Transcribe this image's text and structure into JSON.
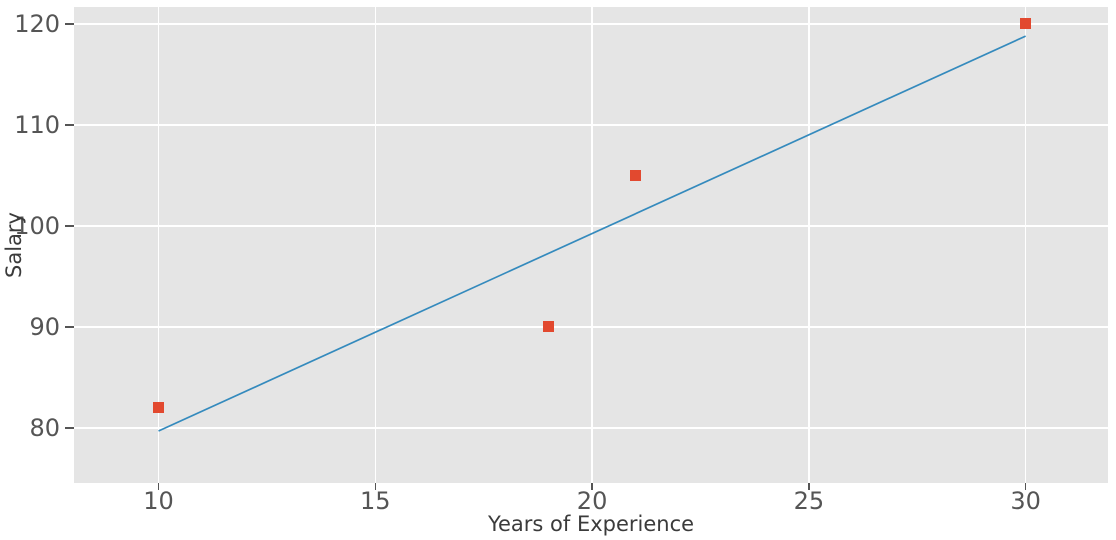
{
  "chart_data": {
    "type": "scatter",
    "title": "",
    "xlabel": "Years of Experience",
    "ylabel": "Salary",
    "series": [
      {
        "name": "data-points",
        "type": "scatter",
        "marker": "square",
        "color": "#E2492F",
        "x": [
          10,
          19,
          21,
          30
        ],
        "y": [
          82,
          90,
          105,
          120
        ]
      },
      {
        "name": "regression-line",
        "type": "line",
        "color": "#348ABD",
        "x": [
          10,
          30
        ],
        "y": [
          79.7,
          118.8
        ]
      }
    ],
    "xticks": [
      10,
      15,
      20,
      25,
      30
    ],
    "yticks": [
      80,
      90,
      100,
      110,
      120
    ],
    "xlim": [
      8.05,
      31.9
    ],
    "ylim": [
      74.55,
      121.68
    ],
    "grid": true,
    "legend": "none",
    "styles": {
      "figure_background": "#FFFFFF",
      "plot_background": "#E5E5E5",
      "grid_color": "#FFFFFF",
      "tick_label_color": "#555555",
      "tick_mark_color": "#555555",
      "axis_label_color": "#3B3B3B"
    }
  }
}
